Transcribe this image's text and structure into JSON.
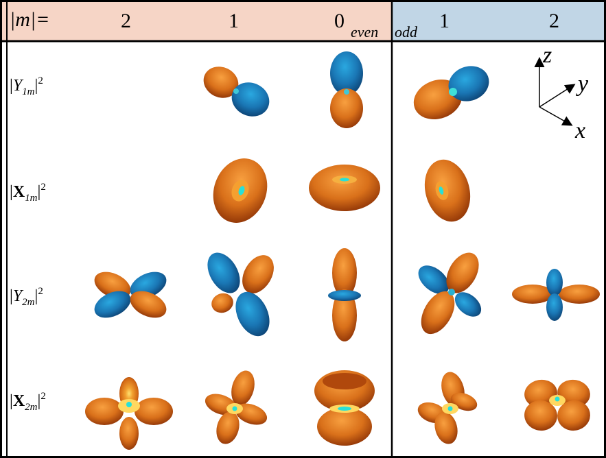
{
  "header": {
    "m_label": "|m|=",
    "even_label": "even",
    "odd_label": "odd",
    "columns": [
      "2",
      "1",
      "0",
      "1",
      "2"
    ],
    "colors": {
      "even_bg": "#f6d5c6",
      "odd_bg": "#c1d6e6"
    }
  },
  "rows": [
    {
      "base": "Y",
      "bold": false,
      "sub": "1m",
      "sup": "2"
    },
    {
      "base": "X",
      "bold": true,
      "sub": "1m",
      "sup": "2"
    },
    {
      "base": "Y",
      "bold": false,
      "sub": "2m",
      "sup": "2"
    },
    {
      "base": "X",
      "bold": true,
      "sub": "2m",
      "sup": "2"
    }
  ],
  "axes": {
    "z": "z",
    "y": "y",
    "x": "x"
  },
  "colors": {
    "lobe_orange": "#d9701a",
    "lobe_blue": "#1a76b4",
    "highlight": "#22e0e0"
  }
}
